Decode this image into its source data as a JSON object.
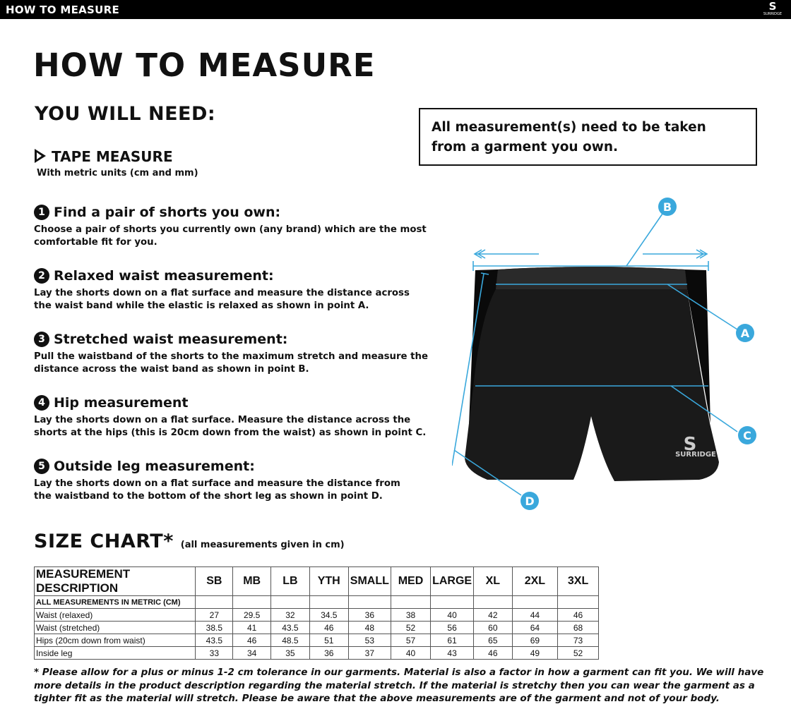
{
  "header": {
    "title": "HOW TO MEASURE",
    "logo": "SURRIDGE"
  },
  "title": "HOW TO MEASURE",
  "you_will_need": "YOU WILL NEED:",
  "tape": {
    "label": "TAPE MEASURE",
    "sub": "With metric units (cm and mm)"
  },
  "note": "All measurement(s) need to be taken from a garment you own.",
  "steps": [
    {
      "num": "1",
      "title": "Find a pair of shorts you own:",
      "body": "Choose a pair of shorts you currently own (any brand) which are the most comfortable fit for you."
    },
    {
      "num": "2",
      "title": "Relaxed waist measurement:",
      "body": "Lay the shorts down on a flat surface and measure the distance across the waist band while the elastic is relaxed as shown in point A."
    },
    {
      "num": "3",
      "title": "Stretched waist measurement:",
      "body": "Pull the waistband of the shorts to the maximum stretch and measure the distance across the waist band as shown in point B."
    },
    {
      "num": "4",
      "title": "Hip measurement",
      "body": "Lay the shorts down on a flat surface. Measure the distance across the shorts at the hips (this is 20cm down from the waist)  as shown in point C."
    },
    {
      "num": "5",
      "title": "Outside leg measurement:",
      "body": "Lay the shorts down on a flat surface and measure the distance from the waistband to the bottom of the short leg as shown in point D."
    }
  ],
  "diagram": {
    "labels": [
      "A",
      "B",
      "C",
      "D"
    ],
    "garment_logo": "SURRIDGE",
    "accent": "#3aa8dc"
  },
  "size_chart": {
    "title": "SIZE CHART*",
    "subtitle": "(all measurements given in cm)",
    "columns": [
      "MEASUREMENT DESCRIPTION",
      "SB",
      "MB",
      "LB",
      "YTH",
      "SMALL",
      "MED",
      "LARGE",
      "XL",
      "2XL",
      "3XL"
    ],
    "metric_note": "ALL MEASUREMENTS IN METRIC (CM)",
    "rows": [
      {
        "label": "Waist (relaxed)",
        "values": [
          "27",
          "29.5",
          "32",
          "34.5",
          "36",
          "38",
          "40",
          "42",
          "44",
          "46"
        ]
      },
      {
        "label": "Waist (stretched)",
        "values": [
          "38.5",
          "41",
          "43.5",
          "46",
          "48",
          "52",
          "56",
          "60",
          "64",
          "68"
        ]
      },
      {
        "label": "Hips (20cm down from waist)",
        "values": [
          "43.5",
          "46",
          "48.5",
          "51",
          "53",
          "57",
          "61",
          "65",
          "69",
          "73"
        ]
      },
      {
        "label": "Inside leg",
        "values": [
          "33",
          "34",
          "35",
          "36",
          "37",
          "40",
          "43",
          "46",
          "49",
          "52"
        ]
      }
    ]
  },
  "footnote": "* Please allow for a plus or minus 1-2 cm tolerance in our garments. Material is also a factor in how a garment can fit you. We will have more details in the product description regarding the material stretch.  If the material is stretchy then you can wear the garment as a tighter fit as the material will stretch.  Please be aware that the above measurements are of the garment and not of your body."
}
